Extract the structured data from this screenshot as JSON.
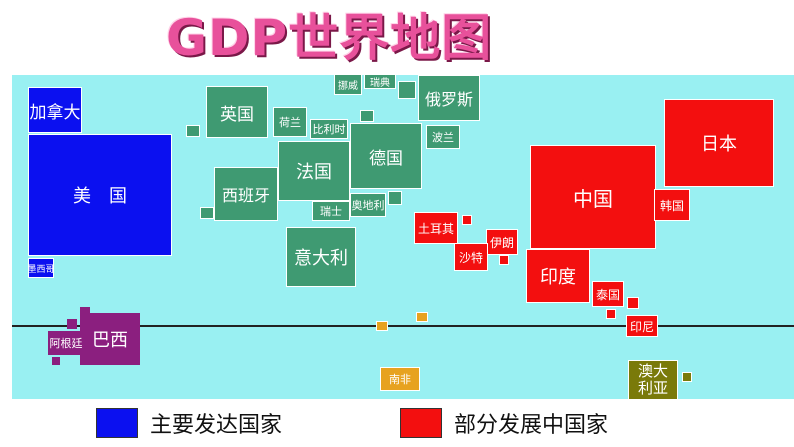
{
  "title": "GDP世界地图",
  "colors": {
    "developed": "#0b10f0",
    "europe": "#3f9a72",
    "developing": "#f30f0f",
    "latin": "#8b1f7f",
    "oceania": "#7a7a0a",
    "background": "#99f0f2"
  },
  "countries": {
    "canada": "加拿大",
    "usa": "美　国",
    "mexico": "墨西哥",
    "brazil": "巴西",
    "argentina": "阿根廷",
    "norway": "挪威",
    "sweden": "瑞典",
    "russia": "俄罗斯",
    "uk": "英国",
    "netherlands": "荷兰",
    "belgium": "比利时",
    "germany": "德国",
    "poland": "波兰",
    "france": "法国",
    "spain": "西班牙",
    "switzerland": "瑞士",
    "austria": "奥地利",
    "italy": "意大利",
    "turkey": "土耳其",
    "iran": "伊朗",
    "saudi": "沙特",
    "japan": "日本",
    "china": "中国",
    "korea": "韩国",
    "india": "印度",
    "thailand": "泰国",
    "indonesia": "印尼",
    "south_africa": "南非",
    "australia": "澳大\n利亚"
  },
  "legend": {
    "developed": "主要发达国家",
    "developing": "部分发展中国家"
  }
}
